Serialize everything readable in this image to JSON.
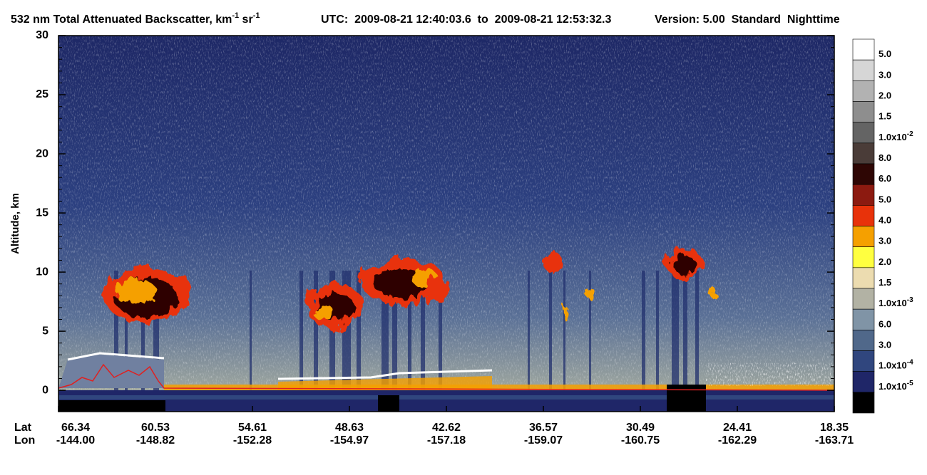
{
  "chart_data": {
    "type": "heatmap",
    "title_parts": [
      "532 nm Total Attenuated Backscatter, km",
      "-1",
      " sr",
      "-1"
    ],
    "utc": "UTC:  2009-08-21 12:40:03.6  to  2009-08-21 12:53:32.3",
    "version": "Version: 5.00  Standard  Nighttime",
    "y_label": "Altitude, km",
    "ylim": [
      -1.8,
      30
    ],
    "yticks": [
      0,
      5,
      10,
      15,
      20,
      25,
      30
    ],
    "x_row_labels": [
      "Lat",
      "Lon"
    ],
    "lat": [
      "66.34",
      "60.53",
      "54.61",
      "48.63",
      "42.62",
      "36.57",
      "30.49",
      "24.41",
      "18.35"
    ],
    "lon": [
      "-144.00",
      "-148.82",
      "-152.28",
      "-154.97",
      "-157.18",
      "-159.07",
      "-160.75",
      "-162.29",
      "-163.71"
    ],
    "colorbar": {
      "colors": [
        "#ffffff",
        "#d6d6d6",
        "#b2b2b2",
        "#8e8e8e",
        "#646464",
        "#4a3c38",
        "#2e0604",
        "#8c1a10",
        "#e8320a",
        "#f5a000",
        "#ffff40",
        "#ecdcb0",
        "#b2b2a4",
        "#8094a6",
        "#50688a",
        "#30467e",
        "#1f2668",
        "#000000"
      ],
      "labels": [
        {
          "text": "5.0"
        },
        {
          "text": "3.0"
        },
        {
          "text": "2.0"
        },
        {
          "text": "1.5"
        },
        {
          "text": "1.0x10",
          "sup": "-2"
        },
        {
          "text": "8.0"
        },
        {
          "text": "6.0"
        },
        {
          "text": "5.0"
        },
        {
          "text": "4.0"
        },
        {
          "text": "3.0"
        },
        {
          "text": "2.0"
        },
        {
          "text": "1.5"
        },
        {
          "text": "1.0x10",
          "sup": "-3"
        },
        {
          "text": "6.0"
        },
        {
          "text": "3.0"
        },
        {
          "text": "1.0x10",
          "sup": "-4"
        },
        {
          "text": "1.0x10",
          "sup": "-5"
        }
      ]
    }
  }
}
